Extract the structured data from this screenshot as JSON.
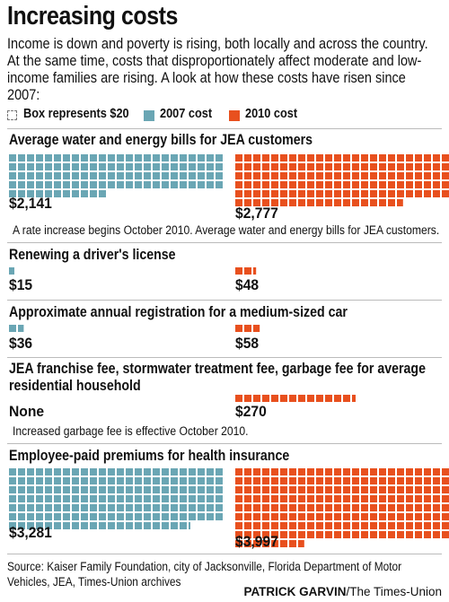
{
  "header": {
    "title": "Increasing costs",
    "intro": "Income is down and poverty is rising, both locally and across the country. At the same time, costs that disproportionately affect moderate and low-income families are rising. A look at how these costs have risen since 2007:"
  },
  "legend": {
    "unit_label": "Box represents $20",
    "series_2007": "2007 cost",
    "series_2010": "2010 cost"
  },
  "colors": {
    "2007": "#6aa6b4",
    "2010": "#e8501e"
  },
  "chart_data": {
    "type": "bar",
    "unit_value": 20,
    "series_names": [
      "2007 cost",
      "2010 cost"
    ],
    "categories": [
      {
        "title": "Average water and energy bills for JEA customers",
        "v2007": 2141,
        "v2010": 2777,
        "label2007": "$2,141",
        "label2010": "$2,777",
        "note": "A rate increase begins October 2010. Average water and energy bills for JEA customers."
      },
      {
        "title": "Renewing a driver's license",
        "v2007": 15,
        "v2010": 48,
        "label2007": "$15",
        "label2010": "$48",
        "note": ""
      },
      {
        "title": "Approximate annual registration for a medium-sized car",
        "v2007": 36,
        "v2010": 58,
        "label2007": "$36",
        "label2010": "$58",
        "note": ""
      },
      {
        "title": "JEA franchise fee, stormwater treatment fee, garbage fee for average residential household",
        "v2007": 0,
        "v2010": 270,
        "label2007": "None",
        "label2010": "$270",
        "note": "Increased garbage fee is effective October 2010."
      },
      {
        "title": "Employee-paid premiums for health insurance",
        "v2007": 3281,
        "v2010": 3997,
        "label2007": "$3,281",
        "label2010": "$3,997",
        "note": ""
      }
    ]
  },
  "footer": {
    "source": "Source: Kaiser Family Foundation, city of Jacksonville, Florida Department of Motor Vehicles, JEA, Times-Union archives",
    "credit_name": "PATRICK GARVIN",
    "credit_org": "/The Times-Union"
  }
}
